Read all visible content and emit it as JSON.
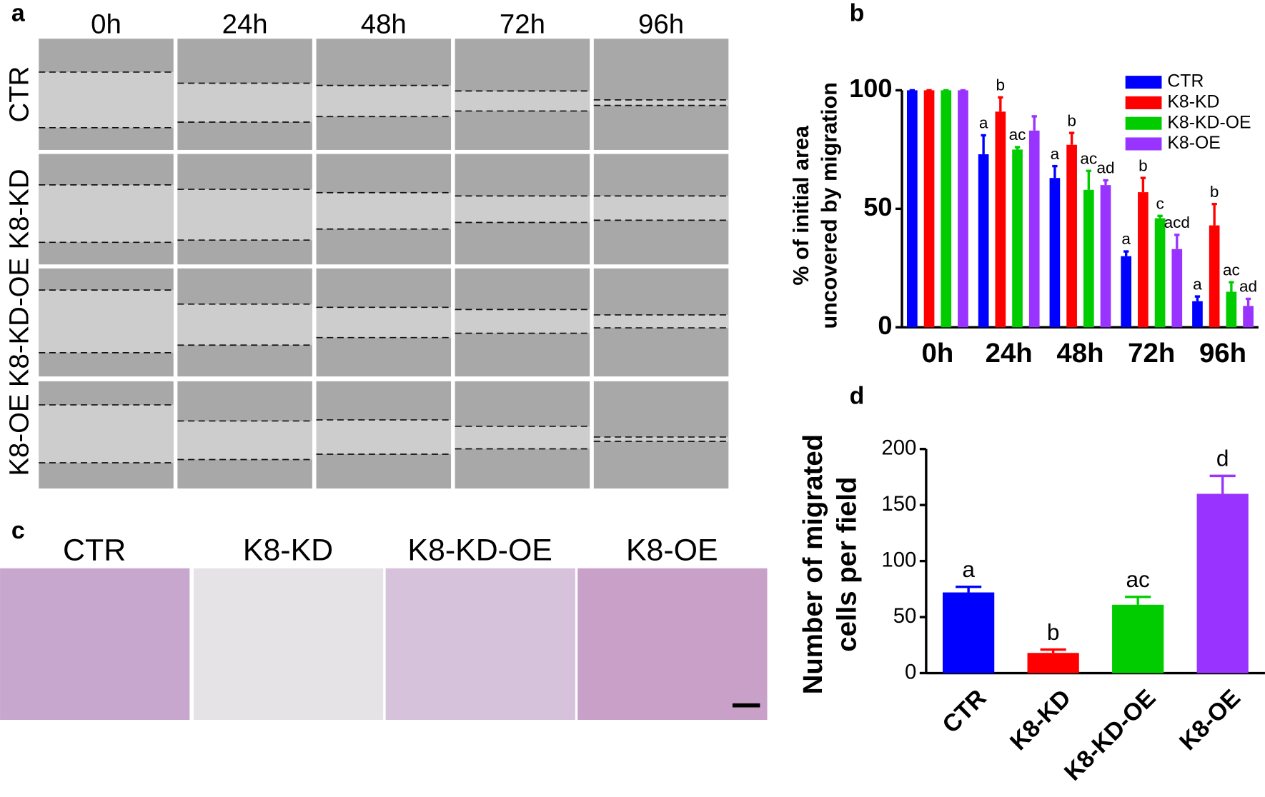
{
  "panel_a": {
    "label": "a",
    "columns": [
      "0h",
      "24h",
      "48h",
      "72h",
      "96h"
    ],
    "rows": [
      "CTR",
      "K8-KD",
      "K8-KD-OE",
      "K8-OE"
    ]
  },
  "panel_c": {
    "label": "c",
    "columns": [
      "CTR",
      "K8-KD",
      "K8-KD-OE",
      "K8-OE"
    ]
  },
  "chart_data": [
    {
      "type": "bar",
      "panel_label": "b",
      "y_label": [
        "% of initial area",
        "uncovered by migration"
      ],
      "categories": [
        "0h",
        "24h",
        "48h",
        "72h",
        "96h"
      ],
      "series": [
        {
          "name": "CTR",
          "color": "#0000ff",
          "values": [
            100,
            73,
            63,
            30,
            11
          ],
          "errors": [
            0,
            8,
            5,
            2,
            2
          ],
          "annotations": [
            null,
            "a",
            "a",
            "a",
            "a"
          ]
        },
        {
          "name": "K8-KD",
          "color": "#ff0000",
          "values": [
            100,
            91,
            77,
            57,
            43
          ],
          "errors": [
            0,
            6,
            5,
            6,
            9
          ],
          "annotations": [
            null,
            "b",
            "b",
            "b",
            "b"
          ]
        },
        {
          "name": "K8-KD-OE",
          "color": "#00cc00",
          "values": [
            100,
            75,
            58,
            46,
            15
          ],
          "errors": [
            0,
            1,
            8,
            1,
            4
          ],
          "annotations": [
            null,
            "ac",
            "ac",
            "c",
            "ac"
          ]
        },
        {
          "name": "K8-OE",
          "color": "#9933ff",
          "values": [
            100,
            83,
            60,
            33,
            9
          ],
          "errors": [
            0,
            6,
            2,
            6,
            3
          ],
          "annotations": [
            null,
            null,
            "ad",
            "acd",
            "ad"
          ]
        }
      ],
      "ylim": [
        0,
        100
      ],
      "yticks": [
        0,
        50,
        100
      ],
      "legend": "top-right"
    },
    {
      "type": "bar",
      "panel_label": "d",
      "y_label": [
        "Number of migrated",
        "cells per field"
      ],
      "categories": [
        "CTR",
        "K8-KD",
        "K8-KD-OE",
        "K8-OE"
      ],
      "values": [
        72,
        18,
        61,
        160
      ],
      "errors": [
        5,
        3,
        7,
        16
      ],
      "annotations": [
        "a",
        "b",
        "ac",
        "d"
      ],
      "colors": [
        "#0000ff",
        "#ff0000",
        "#00cc00",
        "#9933ff"
      ],
      "ylim": [
        0,
        200
      ],
      "yticks": [
        0,
        50,
        100,
        150,
        200
      ]
    }
  ]
}
